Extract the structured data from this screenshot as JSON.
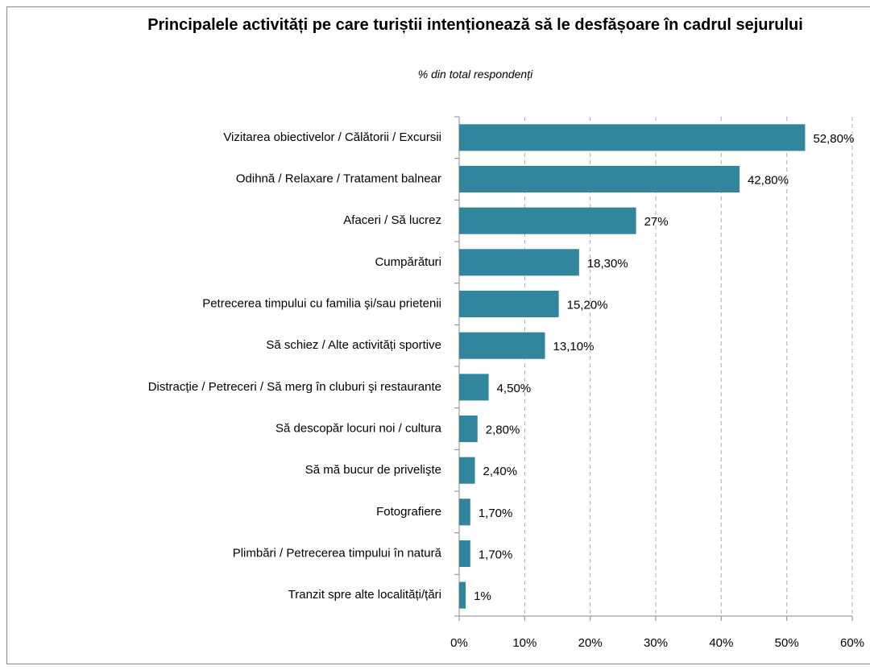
{
  "chart_data": {
    "type": "bar",
    "orientation": "horizontal",
    "title": "Principalele activități pe care turiștii intenționează să le desfășoare în cadrul sejurului",
    "subtitle": "% din total respondenți",
    "categories": [
      "Vizitarea obiectivelor / Călătorii / Excursii",
      "Odihnă / Relaxare / Tratament balnear",
      "Afaceri / Să lucrez",
      "Cumpărături",
      "Petrecerea timpului cu familia şi/sau prietenii",
      "Să schiez / Alte activități sportive",
      "Distracție / Petreceri / Să merg în cluburi şi restaurante",
      "Să descopăr locuri noi  / cultura",
      "Să mă bucur de privelişte",
      "Fotografiere",
      "Plimbări / Petrecerea timpului în natură",
      "Tranzit spre alte localități/țări"
    ],
    "values": [
      52.8,
      42.8,
      27,
      18.3,
      15.2,
      13.1,
      4.5,
      2.8,
      2.4,
      1.7,
      1.7,
      1
    ],
    "value_labels": [
      "52,80%",
      "42,80%",
      "27%",
      "18,30%",
      "15,20%",
      "13,10%",
      "4,50%",
      "2,80%",
      "2,40%",
      "1,70%",
      "1,70%",
      "1%"
    ],
    "color": "#31859c",
    "xlim": [
      0,
      60
    ],
    "xticks": [
      {
        "value": 0,
        "label": "0%"
      },
      {
        "value": 10,
        "label": "10%"
      },
      {
        "value": 20,
        "label": "20%"
      },
      {
        "value": 30,
        "label": "30%"
      },
      {
        "value": 40,
        "label": "40%"
      },
      {
        "value": 50,
        "label": "50%"
      },
      {
        "value": 60,
        "label": "60%"
      }
    ],
    "grid": true
  }
}
